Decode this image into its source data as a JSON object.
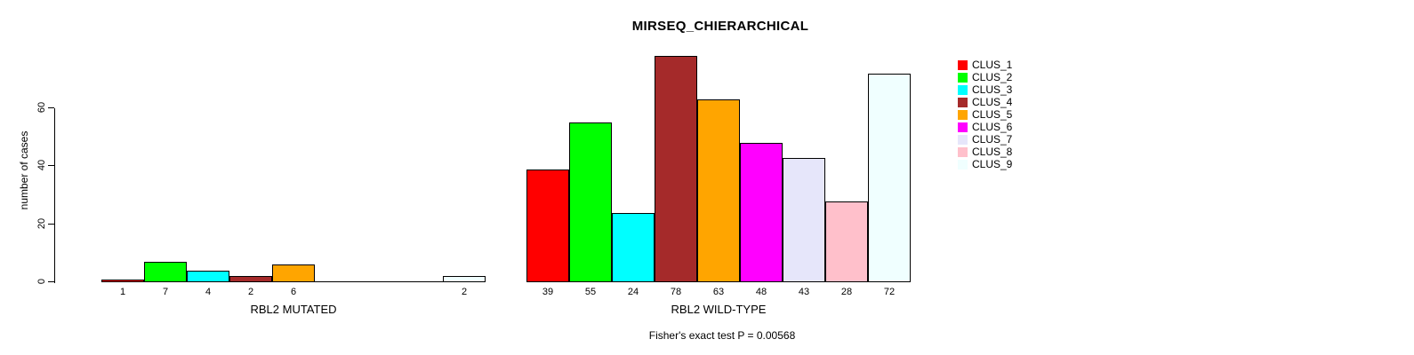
{
  "chart_data": {
    "type": "bar",
    "title": "MIRSEQ_CHIERARCHICAL",
    "ylabel": "number of cases",
    "xlabel": "",
    "yticks": [
      0,
      20,
      40,
      60
    ],
    "ylim": [
      0,
      78
    ],
    "grid": false,
    "legend_position": "right",
    "series_names": [
      "CLUS_1",
      "CLUS_2",
      "CLUS_3",
      "CLUS_4",
      "CLUS_5",
      "CLUS_6",
      "CLUS_7",
      "CLUS_8",
      "CLUS_9"
    ],
    "series_colors": [
      "#FF0000",
      "#00FF00",
      "#00FFFF",
      "#A52A2A",
      "#FFA500",
      "#FF00FF",
      "#E6E6FA",
      "#FFC0CB",
      "#F0FFFF"
    ],
    "groups": [
      {
        "label": "RBL2 MUTATED",
        "values": [
          1,
          7,
          4,
          2,
          6,
          0,
          0,
          0,
          2
        ]
      },
      {
        "label": "RBL2 WILD-TYPE",
        "values": [
          39,
          55,
          24,
          78,
          63,
          48,
          43,
          28,
          72
        ]
      }
    ],
    "annotation": "Fisher's exact test P = 0.00568"
  }
}
